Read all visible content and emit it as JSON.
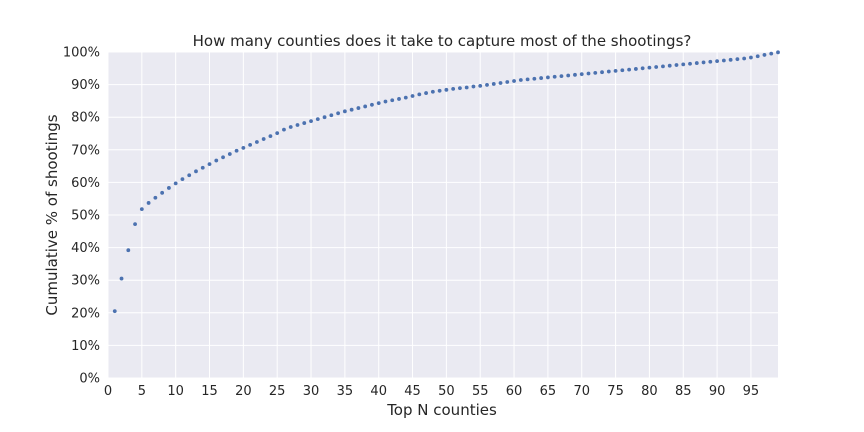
{
  "chart_data": {
    "type": "scatter",
    "title": "How many counties does it take to capture most of the shootings?",
    "xlabel": "Top N counties",
    "ylabel": "Cumulative % of shootings",
    "xlim": [
      0,
      99
    ],
    "ylim": [
      0,
      1.0
    ],
    "xticks": [
      0,
      5,
      10,
      15,
      20,
      25,
      30,
      35,
      40,
      45,
      50,
      55,
      60,
      65,
      70,
      75,
      80,
      85,
      90,
      95
    ],
    "xtick_labels": [
      "0",
      "5",
      "10",
      "15",
      "20",
      "25",
      "30",
      "35",
      "40",
      "45",
      "50",
      "55",
      "60",
      "65",
      "70",
      "75",
      "80",
      "85",
      "90",
      "95"
    ],
    "yticks": [
      0,
      0.1,
      0.2,
      0.3,
      0.4,
      0.5,
      0.6,
      0.7,
      0.8,
      0.9,
      1.0
    ],
    "ytick_labels": [
      "0%",
      "10%",
      "20%",
      "30%",
      "40%",
      "50%",
      "60%",
      "70%",
      "80%",
      "90%",
      "100%"
    ],
    "grid": true,
    "series": [
      {
        "name": "Cumulative share",
        "color": "#4c72b0",
        "x": [
          1,
          2,
          3,
          4,
          5,
          6,
          7,
          8,
          9,
          10,
          11,
          12,
          13,
          14,
          15,
          16,
          17,
          18,
          19,
          20,
          21,
          22,
          23,
          24,
          25,
          26,
          27,
          28,
          29,
          30,
          31,
          32,
          33,
          34,
          35,
          36,
          37,
          38,
          39,
          40,
          41,
          42,
          43,
          44,
          45,
          46,
          47,
          48,
          49,
          50,
          51,
          52,
          53,
          54,
          55,
          56,
          57,
          58,
          59,
          60,
          61,
          62,
          63,
          64,
          65,
          66,
          67,
          68,
          69,
          70,
          71,
          72,
          73,
          74,
          75,
          76,
          77,
          78,
          79,
          80,
          81,
          82,
          83,
          84,
          85,
          86,
          87,
          88,
          89,
          90,
          91,
          92,
          93,
          94,
          95,
          96,
          97,
          98,
          99
        ],
        "y": [
          0.205,
          0.305,
          0.392,
          0.472,
          0.518,
          0.537,
          0.553,
          0.568,
          0.583,
          0.597,
          0.61,
          0.622,
          0.634,
          0.645,
          0.656,
          0.667,
          0.677,
          0.687,
          0.697,
          0.706,
          0.715,
          0.724,
          0.733,
          0.742,
          0.751,
          0.762,
          0.77,
          0.776,
          0.782,
          0.788,
          0.794,
          0.8,
          0.806,
          0.812,
          0.818,
          0.823,
          0.828,
          0.833,
          0.838,
          0.843,
          0.848,
          0.852,
          0.856,
          0.86,
          0.865,
          0.87,
          0.874,
          0.878,
          0.881,
          0.884,
          0.887,
          0.889,
          0.891,
          0.894,
          0.896,
          0.899,
          0.902,
          0.905,
          0.908,
          0.911,
          0.914,
          0.916,
          0.918,
          0.92,
          0.922,
          0.924,
          0.926,
          0.928,
          0.93,
          0.932,
          0.934,
          0.936,
          0.938,
          0.94,
          0.942,
          0.944,
          0.946,
          0.948,
          0.95,
          0.952,
          0.954,
          0.956,
          0.958,
          0.96,
          0.962,
          0.964,
          0.966,
          0.968,
          0.97,
          0.972,
          0.974,
          0.976,
          0.978,
          0.98,
          0.983,
          0.987,
          0.991,
          0.995,
          0.999
        ]
      }
    ]
  }
}
